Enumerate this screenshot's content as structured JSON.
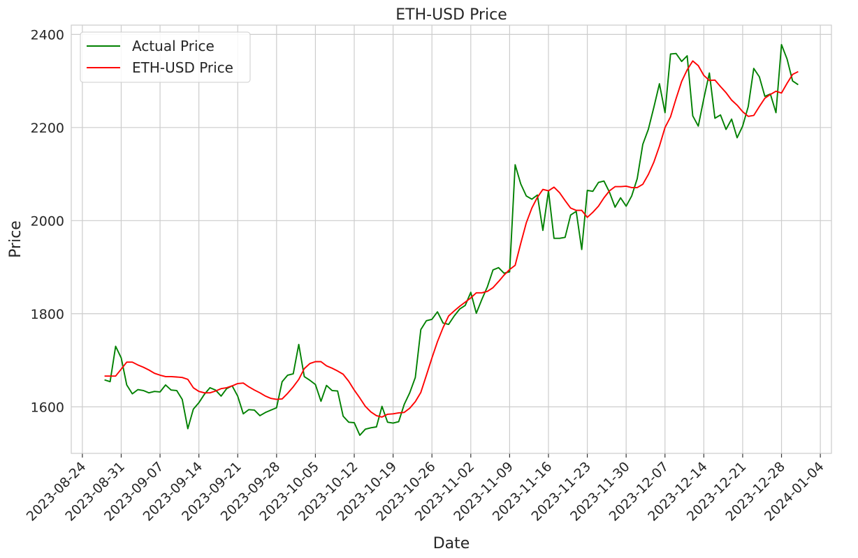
{
  "chart_data": {
    "type": "line",
    "title": "ETH-USD Price",
    "xlabel": "Date",
    "ylabel": "Price",
    "grid": true,
    "legend_position": "top-left",
    "x_ticks": [
      "2023-08-24",
      "2023-08-31",
      "2023-09-07",
      "2023-09-14",
      "2023-09-21",
      "2023-09-28",
      "2023-10-05",
      "2023-10-12",
      "2023-10-19",
      "2023-10-26",
      "2023-11-02",
      "2023-11-09",
      "2023-11-16",
      "2023-11-23",
      "2023-11-30",
      "2023-12-07",
      "2023-12-14",
      "2023-12-21",
      "2023-12-28",
      "2024-01-04"
    ],
    "xlim": [
      "2023-08-22",
      "2024-01-06"
    ],
    "y_ticks": [
      1600,
      1800,
      2000,
      2200,
      2400
    ],
    "ylim": [
      1500,
      2420
    ],
    "series": [
      {
        "name": "Actual Price",
        "color": "#008000",
        "points": [
          [
            "2023-08-28",
            1658
          ],
          [
            "2023-08-29",
            1654
          ],
          [
            "2023-08-30",
            1730
          ],
          [
            "2023-08-31",
            1705
          ],
          [
            "2023-09-01",
            1647
          ],
          [
            "2023-09-02",
            1628
          ],
          [
            "2023-09-03",
            1637
          ],
          [
            "2023-09-04",
            1635
          ],
          [
            "2023-09-05",
            1630
          ],
          [
            "2023-09-06",
            1633
          ],
          [
            "2023-09-07",
            1632
          ],
          [
            "2023-09-08",
            1647
          ],
          [
            "2023-09-09",
            1636
          ],
          [
            "2023-09-10",
            1635
          ],
          [
            "2023-09-11",
            1616
          ],
          [
            "2023-09-12",
            1553
          ],
          [
            "2023-09-13",
            1595
          ],
          [
            "2023-09-14",
            1609
          ],
          [
            "2023-09-15",
            1627
          ],
          [
            "2023-09-16",
            1641
          ],
          [
            "2023-09-17",
            1636
          ],
          [
            "2023-09-18",
            1623
          ],
          [
            "2023-09-19",
            1639
          ],
          [
            "2023-09-20",
            1645
          ],
          [
            "2023-09-21",
            1623
          ],
          [
            "2023-09-22",
            1585
          ],
          [
            "2023-09-23",
            1594
          ],
          [
            "2023-09-24",
            1593
          ],
          [
            "2023-09-25",
            1581
          ],
          [
            "2023-09-26",
            1588
          ],
          [
            "2023-09-27",
            1593
          ],
          [
            "2023-09-28",
            1598
          ],
          [
            "2023-09-29",
            1654
          ],
          [
            "2023-09-30",
            1668
          ],
          [
            "2023-10-01",
            1671
          ],
          [
            "2023-10-02",
            1734
          ],
          [
            "2023-10-03",
            1665
          ],
          [
            "2023-10-04",
            1657
          ],
          [
            "2023-10-05",
            1648
          ],
          [
            "2023-10-06",
            1612
          ],
          [
            "2023-10-07",
            1646
          ],
          [
            "2023-10-08",
            1635
          ],
          [
            "2023-10-09",
            1634
          ],
          [
            "2023-10-10",
            1580
          ],
          [
            "2023-10-11",
            1567
          ],
          [
            "2023-10-12",
            1566
          ],
          [
            "2023-10-13",
            1539
          ],
          [
            "2023-10-14",
            1552
          ],
          [
            "2023-10-15",
            1555
          ],
          [
            "2023-10-16",
            1557
          ],
          [
            "2023-10-17",
            1601
          ],
          [
            "2023-10-18",
            1567
          ],
          [
            "2023-10-19",
            1565
          ],
          [
            "2023-10-20",
            1568
          ],
          [
            "2023-10-21",
            1605
          ],
          [
            "2023-10-22",
            1630
          ],
          [
            "2023-10-23",
            1663
          ],
          [
            "2023-10-24",
            1766
          ],
          [
            "2023-10-25",
            1785
          ],
          [
            "2023-10-26",
            1788
          ],
          [
            "2023-10-27",
            1804
          ],
          [
            "2023-10-28",
            1780
          ],
          [
            "2023-10-29",
            1777
          ],
          [
            "2023-10-30",
            1795
          ],
          [
            "2023-10-31",
            1810
          ],
          [
            "2023-11-01",
            1818
          ],
          [
            "2023-11-02",
            1846
          ],
          [
            "2023-11-03",
            1801
          ],
          [
            "2023-11-04",
            1831
          ],
          [
            "2023-11-05",
            1858
          ],
          [
            "2023-11-06",
            1894
          ],
          [
            "2023-11-07",
            1899
          ],
          [
            "2023-11-08",
            1887
          ],
          [
            "2023-11-09",
            1890
          ],
          [
            "2023-11-10",
            2120
          ],
          [
            "2023-11-11",
            2079
          ],
          [
            "2023-11-12",
            2053
          ],
          [
            "2023-11-13",
            2046
          ],
          [
            "2023-11-14",
            2055
          ],
          [
            "2023-11-15",
            1979
          ],
          [
            "2023-11-16",
            2064
          ],
          [
            "2023-11-17",
            1962
          ],
          [
            "2023-11-18",
            1962
          ],
          [
            "2023-11-19",
            1964
          ],
          [
            "2023-11-20",
            2012
          ],
          [
            "2023-11-21",
            2020
          ],
          [
            "2023-11-22",
            1938
          ],
          [
            "2023-11-23",
            2065
          ],
          [
            "2023-11-24",
            2063
          ],
          [
            "2023-11-25",
            2082
          ],
          [
            "2023-11-26",
            2085
          ],
          [
            "2023-11-27",
            2061
          ],
          [
            "2023-11-28",
            2029
          ],
          [
            "2023-11-29",
            2049
          ],
          [
            "2023-11-30",
            2031
          ],
          [
            "2023-12-01",
            2053
          ],
          [
            "2023-12-02",
            2090
          ],
          [
            "2023-12-03",
            2164
          ],
          [
            "2023-12-04",
            2196
          ],
          [
            "2023-12-05",
            2244
          ],
          [
            "2023-12-06",
            2294
          ],
          [
            "2023-12-07",
            2232
          ],
          [
            "2023-12-08",
            2358
          ],
          [
            "2023-12-09",
            2359
          ],
          [
            "2023-12-10",
            2342
          ],
          [
            "2023-12-11",
            2354
          ],
          [
            "2023-12-12",
            2225
          ],
          [
            "2023-12-13",
            2203
          ],
          [
            "2023-12-14",
            2262
          ],
          [
            "2023-12-15",
            2317
          ],
          [
            "2023-12-16",
            2220
          ],
          [
            "2023-12-17",
            2227
          ],
          [
            "2023-12-18",
            2196
          ],
          [
            "2023-12-19",
            2218
          ],
          [
            "2023-12-20",
            2178
          ],
          [
            "2023-12-21",
            2203
          ],
          [
            "2023-12-22",
            2245
          ],
          [
            "2023-12-23",
            2327
          ],
          [
            "2023-12-24",
            2309
          ],
          [
            "2023-12-25",
            2267
          ],
          [
            "2023-12-26",
            2272
          ],
          [
            "2023-12-27",
            2232
          ],
          [
            "2023-12-28",
            2378
          ],
          [
            "2023-12-29",
            2347
          ],
          [
            "2023-12-30",
            2300
          ],
          [
            "2023-12-31",
            2292
          ]
        ]
      },
      {
        "name": "ETH-USD Price",
        "color": "#ff0000",
        "points": [
          [
            "2023-08-28",
            1666
          ],
          [
            "2023-08-29",
            1666
          ],
          [
            "2023-08-30",
            1666
          ],
          [
            "2023-08-31",
            1681
          ],
          [
            "2023-09-01",
            1696
          ],
          [
            "2023-09-02",
            1696
          ],
          [
            "2023-09-03",
            1690
          ],
          [
            "2023-09-04",
            1685
          ],
          [
            "2023-09-05",
            1679
          ],
          [
            "2023-09-06",
            1672
          ],
          [
            "2023-09-07",
            1668
          ],
          [
            "2023-09-08",
            1665
          ],
          [
            "2023-09-09",
            1665
          ],
          [
            "2023-09-10",
            1664
          ],
          [
            "2023-09-11",
            1663
          ],
          [
            "2023-09-12",
            1659
          ],
          [
            "2023-09-13",
            1641
          ],
          [
            "2023-09-14",
            1633
          ],
          [
            "2023-09-15",
            1630
          ],
          [
            "2023-09-16",
            1630
          ],
          [
            "2023-09-17",
            1634
          ],
          [
            "2023-09-18",
            1639
          ],
          [
            "2023-09-19",
            1641
          ],
          [
            "2023-09-20",
            1645
          ],
          [
            "2023-09-21",
            1650
          ],
          [
            "2023-09-22",
            1651
          ],
          [
            "2023-09-23",
            1643
          ],
          [
            "2023-09-24",
            1636
          ],
          [
            "2023-09-25",
            1630
          ],
          [
            "2023-09-26",
            1623
          ],
          [
            "2023-09-27",
            1618
          ],
          [
            "2023-09-28",
            1616
          ],
          [
            "2023-09-29",
            1617
          ],
          [
            "2023-09-30",
            1629
          ],
          [
            "2023-10-01",
            1643
          ],
          [
            "2023-10-02",
            1659
          ],
          [
            "2023-10-03",
            1682
          ],
          [
            "2023-10-04",
            1693
          ],
          [
            "2023-10-05",
            1697
          ],
          [
            "2023-10-06",
            1697
          ],
          [
            "2023-10-07",
            1688
          ],
          [
            "2023-10-08",
            1683
          ],
          [
            "2023-10-09",
            1677
          ],
          [
            "2023-10-10",
            1670
          ],
          [
            "2023-10-11",
            1655
          ],
          [
            "2023-10-12",
            1636
          ],
          [
            "2023-10-13",
            1619
          ],
          [
            "2023-10-14",
            1601
          ],
          [
            "2023-10-15",
            1589
          ],
          [
            "2023-10-16",
            1581
          ],
          [
            "2023-10-17",
            1578
          ],
          [
            "2023-10-18",
            1584
          ],
          [
            "2023-10-19",
            1585
          ],
          [
            "2023-10-20",
            1587
          ],
          [
            "2023-10-21",
            1588
          ],
          [
            "2023-10-22",
            1597
          ],
          [
            "2023-10-23",
            1611
          ],
          [
            "2023-10-24",
            1631
          ],
          [
            "2023-10-25",
            1668
          ],
          [
            "2023-10-26",
            1705
          ],
          [
            "2023-10-27",
            1740
          ],
          [
            "2023-10-28",
            1770
          ],
          [
            "2023-10-29",
            1795
          ],
          [
            "2023-10-30",
            1806
          ],
          [
            "2023-10-31",
            1816
          ],
          [
            "2023-11-01",
            1825
          ],
          [
            "2023-11-02",
            1834
          ],
          [
            "2023-11-03",
            1845
          ],
          [
            "2023-11-04",
            1845
          ],
          [
            "2023-11-05",
            1848
          ],
          [
            "2023-11-06",
            1856
          ],
          [
            "2023-11-07",
            1869
          ],
          [
            "2023-11-08",
            1883
          ],
          [
            "2023-11-09",
            1895
          ],
          [
            "2023-11-10",
            1904
          ],
          [
            "2023-11-11",
            1951
          ],
          [
            "2023-11-12",
            1995
          ],
          [
            "2023-11-13",
            2027
          ],
          [
            "2023-11-14",
            2050
          ],
          [
            "2023-11-15",
            2067
          ],
          [
            "2023-11-16",
            2064
          ],
          [
            "2023-11-17",
            2072
          ],
          [
            "2023-11-18",
            2060
          ],
          [
            "2023-11-19",
            2043
          ],
          [
            "2023-11-20",
            2027
          ],
          [
            "2023-11-21",
            2022
          ],
          [
            "2023-11-22",
            2022
          ],
          [
            "2023-11-23",
            2007
          ],
          [
            "2023-11-24",
            2018
          ],
          [
            "2023-11-25",
            2031
          ],
          [
            "2023-11-26",
            2049
          ],
          [
            "2023-11-27",
            2064
          ],
          [
            "2023-11-28",
            2073
          ],
          [
            "2023-11-29",
            2073
          ],
          [
            "2023-11-30",
            2074
          ],
          [
            "2023-12-01",
            2071
          ],
          [
            "2023-12-02",
            2071
          ],
          [
            "2023-12-03",
            2078
          ],
          [
            "2023-12-04",
            2099
          ],
          [
            "2023-12-05",
            2126
          ],
          [
            "2023-12-06",
            2160
          ],
          [
            "2023-12-07",
            2200
          ],
          [
            "2023-12-08",
            2223
          ],
          [
            "2023-12-09",
            2262
          ],
          [
            "2023-12-10",
            2299
          ],
          [
            "2023-12-11",
            2324
          ],
          [
            "2023-12-12",
            2343
          ],
          [
            "2023-12-13",
            2333
          ],
          [
            "2023-12-14",
            2312
          ],
          [
            "2023-12-15",
            2301
          ],
          [
            "2023-12-16",
            2302
          ],
          [
            "2023-12-17",
            2288
          ],
          [
            "2023-12-18",
            2275
          ],
          [
            "2023-12-19",
            2259
          ],
          [
            "2023-12-20",
            2248
          ],
          [
            "2023-12-21",
            2234
          ],
          [
            "2023-12-22",
            2224
          ],
          [
            "2023-12-23",
            2226
          ],
          [
            "2023-12-24",
            2245
          ],
          [
            "2023-12-25",
            2263
          ],
          [
            "2023-12-26",
            2271
          ],
          [
            "2023-12-27",
            2278
          ],
          [
            "2023-12-28",
            2274
          ],
          [
            "2023-12-29",
            2295
          ],
          [
            "2023-12-30",
            2314
          ],
          [
            "2023-12-31",
            2320
          ]
        ]
      }
    ]
  }
}
